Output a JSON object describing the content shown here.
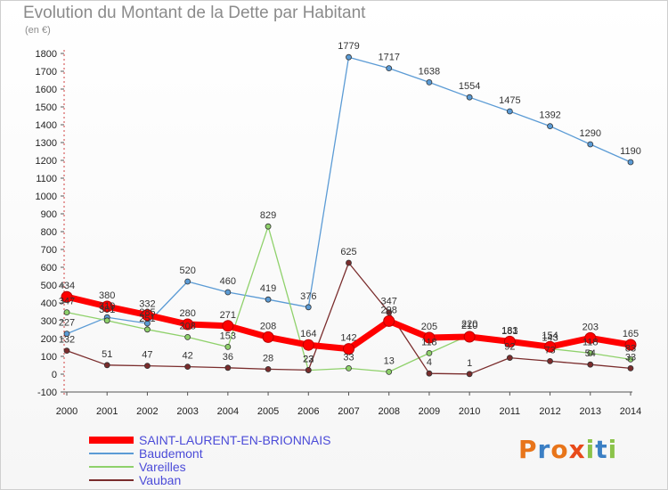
{
  "title": "Evolution du Montant de la Dette par Habitant",
  "subtitle": "(en €)",
  "logo": {
    "text": "Proxiti",
    "colors": [
      "#e8751a",
      "#3b7fc4",
      "#e8751a",
      "#e84a1a",
      "#8bc34a",
      "#3b7fc4",
      "#8bc34a"
    ]
  },
  "chart_data": {
    "type": "line",
    "title": "Evolution du Montant de la Dette par Habitant",
    "ylabel": "(en €)",
    "xlabel": "",
    "ylim": [
      -100,
      1800
    ],
    "yticks": [
      -100,
      0,
      100,
      200,
      300,
      400,
      500,
      600,
      700,
      800,
      900,
      1000,
      1100,
      1200,
      1300,
      1400,
      1500,
      1600,
      1700,
      1800
    ],
    "x": [
      "2000",
      "2001",
      "2002",
      "2003",
      "2004",
      "2005",
      "2006",
      "2007",
      "2008",
      "2009",
      "2010",
      "2011",
      "2012",
      "2013",
      "2014"
    ],
    "grid": false,
    "legend_position": "bottom-left",
    "series": [
      {
        "name": "Baudemont",
        "color": "#5b9bd5",
        "width": 1.3,
        "values": [
          227,
          319,
          285,
          520,
          460,
          419,
          376,
          1779,
          1717,
          1638,
          1554,
          1475,
          1392,
          1290,
          1190
        ],
        "labels": [
          "227",
          "319",
          "285",
          "520",
          "460",
          "419",
          "376",
          "1779",
          "1717",
          "1638",
          "1554",
          "1475",
          "1392",
          "1290",
          "1190"
        ]
      },
      {
        "name": "Vareilles",
        "color": "#8fd16b",
        "width": 1.3,
        "values": [
          347,
          301,
          251,
          208,
          153,
          829,
          22,
          33,
          13,
          118,
          220,
          181,
          143,
          118,
          83
        ],
        "labels": [
          "347",
          "301",
          "251",
          "208",
          "153",
          "829",
          "22",
          "33",
          "13",
          "118",
          "220",
          "181",
          "143",
          "118",
          "83"
        ]
      },
      {
        "name": "Vauban",
        "color": "#7a2c2c",
        "width": 1.3,
        "values": [
          132,
          51,
          47,
          42,
          36,
          28,
          23,
          625,
          347,
          4,
          1,
          92,
          73,
          54,
          33
        ],
        "labels": [
          "132",
          "51",
          "47",
          "42",
          "36",
          "28",
          "23",
          "625",
          "347",
          "4",
          "1",
          "92",
          "73",
          "54",
          "33"
        ]
      },
      {
        "name": "SAINT-LAURENT-EN-BRIONNAIS",
        "color": "#ff0000",
        "width": 7,
        "values": [
          434,
          380,
          332,
          280,
          271,
          208,
          164,
          142,
          298,
          205,
          210,
          183,
          154,
          203,
          165
        ],
        "labels": [
          "434",
          "380",
          "332",
          "280",
          "271",
          "208",
          "164",
          "142",
          "298",
          "205",
          "210",
          "183",
          "154",
          "203",
          "165"
        ]
      }
    ]
  },
  "legend": [
    {
      "label": "SAINT-LAURENT-EN-BRIONNAIS",
      "color": "#ff0000",
      "thickness": 8
    },
    {
      "label": "Baudemont",
      "color": "#5b9bd5",
      "thickness": 2
    },
    {
      "label": "Vareilles",
      "color": "#8fd16b",
      "thickness": 2
    },
    {
      "label": "Vauban",
      "color": "#7a2c2c",
      "thickness": 2
    }
  ]
}
